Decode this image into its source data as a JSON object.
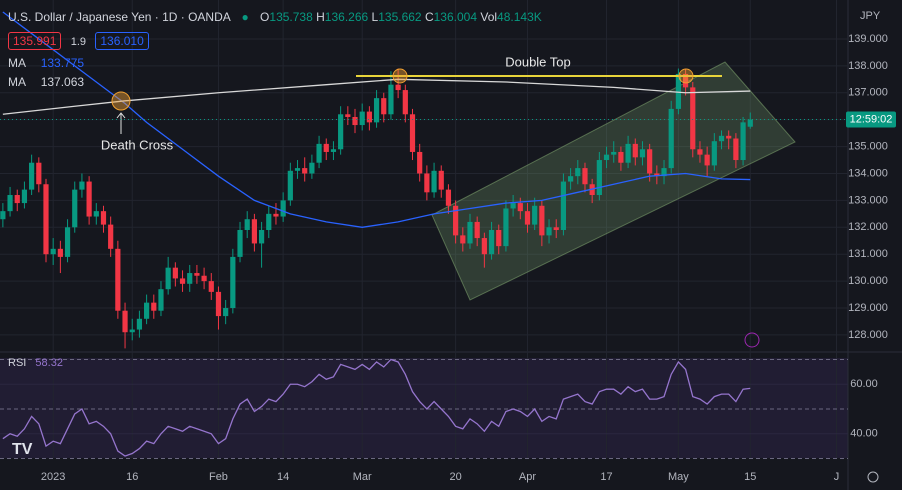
{
  "chart_data": {
    "type": "candlestick",
    "title": "U.S. Dollar / Japanese Yen · 1D · OANDA",
    "ohlc_labels": [
      "O",
      "H",
      "L",
      "C"
    ],
    "volume_label": "Vol",
    "volume": "48.143K",
    "sell": "135.991",
    "spread": "1.9",
    "buy": "136.010",
    "countdown": "12:59:02",
    "currency": "JPY",
    "up_color": "#089981",
    "down_color": "#f23645",
    "candles": [
      [
        132.3,
        132.9,
        132.0,
        132.6
      ],
      [
        132.6,
        133.5,
        132.4,
        133.2
      ],
      [
        133.2,
        133.4,
        132.6,
        132.9
      ],
      [
        132.9,
        133.7,
        132.7,
        133.4
      ],
      [
        133.4,
        134.7,
        133.2,
        134.4
      ],
      [
        134.4,
        134.6,
        133.3,
        133.6
      ],
      [
        133.6,
        133.8,
        130.7,
        131.0
      ],
      [
        131.0,
        131.6,
        130.6,
        131.2
      ],
      [
        131.2,
        131.5,
        130.3,
        130.9
      ],
      [
        130.9,
        132.3,
        130.7,
        132.0
      ],
      [
        132.0,
        133.7,
        131.8,
        133.4
      ],
      [
        133.4,
        134.0,
        133.1,
        133.7
      ],
      [
        133.7,
        133.9,
        132.1,
        132.4
      ],
      [
        132.4,
        132.9,
        132.1,
        132.6
      ],
      [
        132.6,
        132.8,
        131.8,
        132.1
      ],
      [
        132.1,
        132.4,
        130.9,
        131.2
      ],
      [
        131.2,
        131.5,
        128.6,
        128.9
      ],
      [
        128.9,
        129.2,
        127.5,
        128.1
      ],
      [
        128.1,
        128.6,
        127.8,
        128.2
      ],
      [
        128.2,
        128.9,
        127.9,
        128.6
      ],
      [
        128.6,
        129.5,
        128.4,
        129.2
      ],
      [
        129.2,
        129.5,
        128.6,
        128.9
      ],
      [
        128.9,
        130.0,
        128.7,
        129.7
      ],
      [
        129.7,
        130.9,
        129.5,
        130.5
      ],
      [
        130.5,
        130.7,
        129.8,
        130.1
      ],
      [
        130.1,
        130.4,
        129.6,
        129.9
      ],
      [
        129.9,
        130.6,
        129.6,
        130.3
      ],
      [
        130.3,
        130.6,
        129.9,
        130.2
      ],
      [
        130.2,
        130.5,
        129.7,
        130.0
      ],
      [
        130.0,
        130.3,
        129.3,
        129.6
      ],
      [
        129.6,
        129.8,
        128.2,
        128.7
      ],
      [
        128.7,
        129.3,
        128.4,
        129.0
      ],
      [
        129.0,
        131.2,
        128.8,
        130.9
      ],
      [
        130.9,
        132.2,
        130.7,
        131.9
      ],
      [
        131.9,
        132.6,
        131.6,
        132.3
      ],
      [
        132.3,
        132.5,
        131.1,
        131.4
      ],
      [
        131.4,
        132.2,
        130.5,
        131.9
      ],
      [
        131.9,
        132.8,
        131.6,
        132.5
      ],
      [
        132.5,
        132.9,
        132.1,
        132.4
      ],
      [
        132.4,
        133.3,
        132.2,
        133.0
      ],
      [
        133.0,
        134.4,
        132.8,
        134.1
      ],
      [
        134.1,
        134.5,
        133.8,
        134.2
      ],
      [
        134.2,
        134.6,
        133.7,
        134.0
      ],
      [
        134.0,
        134.7,
        133.8,
        134.4
      ],
      [
        134.4,
        135.4,
        134.2,
        135.1
      ],
      [
        135.1,
        135.3,
        134.5,
        134.8
      ],
      [
        134.8,
        135.2,
        134.5,
        134.9
      ],
      [
        134.9,
        136.5,
        134.7,
        136.2
      ],
      [
        136.2,
        136.5,
        135.8,
        136.1
      ],
      [
        136.1,
        136.4,
        135.5,
        135.8
      ],
      [
        135.8,
        136.6,
        135.6,
        136.3
      ],
      [
        136.3,
        136.5,
        135.6,
        135.9
      ],
      [
        135.9,
        137.1,
        135.7,
        136.8
      ],
      [
        136.8,
        137.0,
        135.9,
        136.2
      ],
      [
        136.2,
        137.8,
        136.0,
        137.3
      ],
      [
        137.3,
        137.9,
        136.8,
        137.1
      ],
      [
        137.1,
        137.3,
        135.9,
        136.2
      ],
      [
        136.2,
        136.4,
        134.5,
        134.8
      ],
      [
        134.8,
        135.1,
        133.7,
        134.0
      ],
      [
        134.0,
        134.3,
        133.0,
        133.3
      ],
      [
        133.3,
        134.4,
        133.1,
        134.1
      ],
      [
        134.1,
        134.3,
        133.1,
        133.4
      ],
      [
        133.4,
        133.6,
        132.5,
        132.8
      ],
      [
        132.8,
        133.0,
        131.4,
        131.7
      ],
      [
        131.7,
        132.0,
        131.1,
        131.4
      ],
      [
        131.4,
        132.5,
        131.2,
        132.2
      ],
      [
        132.2,
        132.4,
        131.3,
        131.6
      ],
      [
        131.6,
        131.8,
        130.5,
        131.0
      ],
      [
        131.0,
        132.2,
        130.8,
        131.9
      ],
      [
        131.9,
        132.1,
        131.0,
        131.3
      ],
      [
        131.3,
        133.0,
        131.1,
        132.7
      ],
      [
        132.7,
        133.2,
        132.4,
        132.9
      ],
      [
        132.9,
        133.1,
        132.3,
        132.6
      ],
      [
        132.6,
        132.9,
        131.8,
        132.1
      ],
      [
        132.1,
        133.1,
        131.9,
        132.8
      ],
      [
        132.8,
        133.0,
        131.3,
        131.7
      ],
      [
        131.7,
        132.3,
        131.4,
        132.0
      ],
      [
        132.0,
        132.3,
        131.6,
        131.9
      ],
      [
        131.9,
        134.0,
        131.7,
        133.7
      ],
      [
        133.7,
        134.2,
        133.4,
        133.9
      ],
      [
        133.9,
        134.5,
        133.6,
        134.2
      ],
      [
        134.2,
        134.4,
        133.3,
        133.6
      ],
      [
        133.6,
        133.8,
        132.9,
        133.2
      ],
      [
        133.2,
        134.8,
        133.0,
        134.5
      ],
      [
        134.5,
        135.0,
        134.2,
        134.7
      ],
      [
        134.7,
        135.2,
        134.4,
        134.8
      ],
      [
        134.8,
        135.0,
        134.1,
        134.4
      ],
      [
        134.4,
        135.4,
        134.2,
        135.1
      ],
      [
        135.1,
        135.3,
        134.3,
        134.6
      ],
      [
        134.6,
        135.2,
        134.3,
        134.9
      ],
      [
        134.9,
        135.1,
        133.7,
        134.0
      ],
      [
        134.0,
        134.3,
        133.6,
        133.9
      ],
      [
        133.9,
        134.5,
        133.6,
        134.2
      ],
      [
        134.2,
        136.7,
        134.0,
        136.4
      ],
      [
        136.4,
        137.9,
        136.2,
        137.7
      ],
      [
        137.7,
        137.9,
        136.9,
        137.2
      ],
      [
        137.2,
        137.4,
        134.6,
        134.9
      ],
      [
        134.9,
        135.2,
        134.4,
        134.7
      ],
      [
        134.7,
        135.0,
        133.9,
        134.3
      ],
      [
        134.3,
        135.5,
        134.1,
        135.2
      ],
      [
        135.2,
        135.6,
        134.9,
        135.4
      ],
      [
        135.4,
        135.6,
        134.9,
        135.3
      ],
      [
        135.3,
        135.5,
        134.2,
        134.5
      ],
      [
        134.5,
        136.1,
        134.3,
        135.9
      ],
      [
        135.738,
        136.266,
        135.662,
        136.004
      ]
    ],
    "ma_lines": [
      {
        "name": "MA",
        "color": "#2962ff",
        "x": [
          0,
          5,
          10,
          15,
          17,
          20,
          25,
          30,
          35,
          40,
          45,
          50,
          55,
          60,
          65,
          70,
          75,
          80,
          85,
          90,
          95,
          100,
          104
        ],
        "values": [
          140.0,
          139.0,
          138.0,
          137.0,
          136.6,
          135.9,
          134.9,
          133.9,
          133.0,
          132.5,
          132.2,
          132.0,
          132.2,
          132.5,
          132.7,
          132.9,
          133.0,
          133.3,
          133.6,
          133.9,
          134.0,
          133.8,
          133.775
        ]
      },
      {
        "name": "MA",
        "color": "#d8d8d8",
        "x": [
          0,
          10,
          17,
          30,
          45,
          55,
          70,
          85,
          95,
          104
        ],
        "values": [
          136.2,
          136.5,
          136.7,
          137.0,
          137.3,
          137.5,
          137.4,
          137.2,
          137.0,
          137.063
        ]
      }
    ],
    "annotations": [
      "Death Cross",
      "Double Top"
    ],
    "xlim": [
      -0.4,
      117.6
    ],
    "ylim": [
      127.44,
      140.15
    ],
    "xticks": [
      {
        "value": 7,
        "label": "2023"
      },
      {
        "value": 18,
        "label": "16"
      },
      {
        "value": 30,
        "label": "Feb"
      },
      {
        "value": 39,
        "label": "14"
      },
      {
        "value": 50,
        "label": "Mar"
      },
      {
        "value": 63,
        "label": "20"
      },
      {
        "value": 73,
        "label": "Apr"
      },
      {
        "value": 84,
        "label": "17"
      },
      {
        "value": 94,
        "label": "May"
      },
      {
        "value": 104,
        "label": "15"
      },
      {
        "value": 116,
        "label": "J"
      }
    ],
    "yticks": [
      {
        "value": 128,
        "label": "128.000"
      },
      {
        "value": 129,
        "label": "129.000"
      },
      {
        "value": 130,
        "label": "130.000"
      },
      {
        "value": 131,
        "label": "131.000"
      },
      {
        "value": 132,
        "label": "132.000"
      },
      {
        "value": 133,
        "label": "133.000"
      },
      {
        "value": 134,
        "label": "134.000"
      },
      {
        "value": 135,
        "label": "135.000"
      },
      {
        "value": 136,
        "label": "136.000"
      },
      {
        "value": 137,
        "label": "137.000"
      },
      {
        "value": 138,
        "label": "138.000"
      },
      {
        "value": 139,
        "label": "139.000"
      }
    ],
    "rsi": {
      "name": "RSI",
      "color": "#9575cd",
      "ylim": [
        30.2,
        70.6
      ],
      "levels": [
        70,
        50,
        30
      ],
      "yticks": [
        {
          "value": 60,
          "label": "60.00"
        },
        {
          "value": 40,
          "label": "40.00"
        }
      ],
      "values": [
        38,
        40,
        39,
        42,
        47,
        44,
        35,
        37,
        36,
        42,
        48,
        50,
        44,
        45,
        43,
        40,
        33,
        31,
        32,
        34,
        37,
        36,
        40,
        43,
        42,
        41,
        43,
        42,
        41,
        40,
        36,
        38,
        46,
        52,
        54,
        49,
        51,
        54,
        53,
        56,
        60,
        60,
        59,
        61,
        64,
        62,
        63,
        68,
        67,
        66,
        68,
        66,
        69,
        67,
        70,
        69,
        64,
        57,
        53,
        50,
        53,
        50,
        47,
        43,
        42,
        46,
        44,
        41,
        45,
        43,
        49,
        50,
        49,
        47,
        50,
        45,
        47,
        46,
        54,
        55,
        56,
        53,
        52,
        57,
        58,
        58,
        56,
        59,
        57,
        58,
        54,
        54,
        55,
        64,
        69,
        66,
        55,
        54,
        52,
        55,
        56,
        56,
        53,
        58,
        58.32
      ]
    }
  }
}
